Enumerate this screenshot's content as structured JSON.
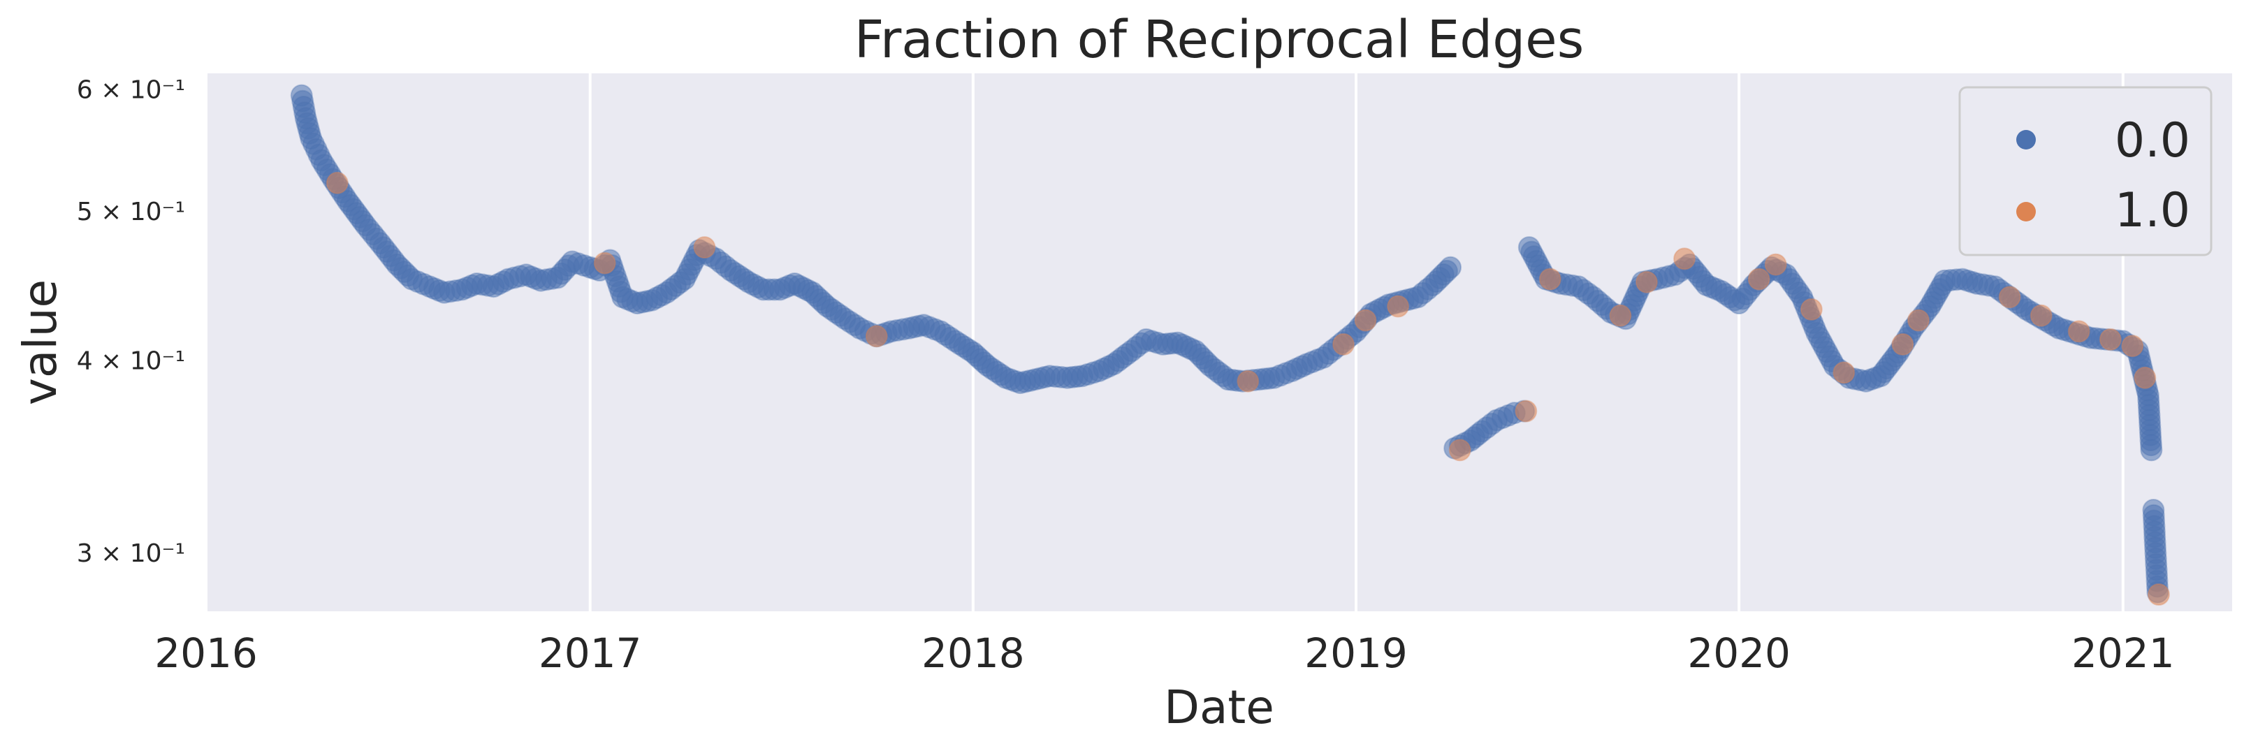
{
  "chart_data": {
    "type": "scatter",
    "title": "Fraction of Reciprocal Edges",
    "xlabel": "Date",
    "ylabel": "value",
    "xlim": [
      "2016-01-01",
      "2021-04-15"
    ],
    "ylim": [
      0.275,
      0.615
    ],
    "yscale": "log",
    "x_tick_labels": [
      "2016",
      "2017",
      "2018",
      "2019",
      "2020",
      "2021"
    ],
    "y_tick_labels": [
      {
        "value": 0.6,
        "label": "6 × 10⁻¹"
      },
      {
        "value": 0.5,
        "label": "5 × 10⁻¹"
      },
      {
        "value": 0.4,
        "label": "4 × 10⁻¹"
      },
      {
        "value": 0.3,
        "label": "3 × 10⁻¹"
      }
    ],
    "grid": true,
    "legend_position": "top-right",
    "colors": {
      "background": "#eaeaf2",
      "grid": "#ffffff",
      "series_0": "#4c72b0",
      "series_1": "#dd8452"
    },
    "series": [
      {
        "name": "0.0",
        "color": "#4c72b0",
        "points": [
          [
            "2016-04-01",
            0.595
          ],
          [
            "2016-04-05",
            0.575
          ],
          [
            "2016-04-10",
            0.558
          ],
          [
            "2016-04-20",
            0.54
          ],
          [
            "2016-05-01",
            0.525
          ],
          [
            "2016-05-15",
            0.508
          ],
          [
            "2016-06-01",
            0.49
          ],
          [
            "2016-06-15",
            0.477
          ],
          [
            "2016-07-01",
            0.462
          ],
          [
            "2016-07-15",
            0.452
          ],
          [
            "2016-08-01",
            0.447
          ],
          [
            "2016-08-15",
            0.443
          ],
          [
            "2016-09-01",
            0.445
          ],
          [
            "2016-09-15",
            0.449
          ],
          [
            "2016-10-01",
            0.447
          ],
          [
            "2016-10-15",
            0.452
          ],
          [
            "2016-11-01",
            0.455
          ],
          [
            "2016-11-15",
            0.451
          ],
          [
            "2016-12-01",
            0.453
          ],
          [
            "2016-12-15",
            0.464
          ],
          [
            "2017-01-01",
            0.46
          ],
          [
            "2017-01-10",
            0.458
          ],
          [
            "2017-01-20",
            0.465
          ],
          [
            "2017-02-01",
            0.44
          ],
          [
            "2017-02-15",
            0.436
          ],
          [
            "2017-03-01",
            0.438
          ],
          [
            "2017-03-15",
            0.443
          ],
          [
            "2017-04-01",
            0.452
          ],
          [
            "2017-04-15",
            0.472
          ],
          [
            "2017-05-01",
            0.466
          ],
          [
            "2017-05-15",
            0.458
          ],
          [
            "2017-06-01",
            0.45
          ],
          [
            "2017-06-15",
            0.445
          ],
          [
            "2017-07-01",
            0.445
          ],
          [
            "2017-07-15",
            0.449
          ],
          [
            "2017-08-01",
            0.443
          ],
          [
            "2017-08-15",
            0.434
          ],
          [
            "2017-09-01",
            0.426
          ],
          [
            "2017-09-15",
            0.42
          ],
          [
            "2017-10-01",
            0.415
          ],
          [
            "2017-10-15",
            0.418
          ],
          [
            "2017-11-01",
            0.42
          ],
          [
            "2017-11-15",
            0.422
          ],
          [
            "2017-12-01",
            0.418
          ],
          [
            "2017-12-15",
            0.412
          ],
          [
            "2018-01-01",
            0.405
          ],
          [
            "2018-01-15",
            0.397
          ],
          [
            "2018-02-01",
            0.39
          ],
          [
            "2018-02-15",
            0.387
          ],
          [
            "2018-03-01",
            0.389
          ],
          [
            "2018-03-15",
            0.391
          ],
          [
            "2018-04-01",
            0.39
          ],
          [
            "2018-04-15",
            0.391
          ],
          [
            "2018-05-01",
            0.394
          ],
          [
            "2018-05-15",
            0.398
          ],
          [
            "2018-06-01",
            0.406
          ],
          [
            "2018-06-15",
            0.413
          ],
          [
            "2018-07-01",
            0.41
          ],
          [
            "2018-07-15",
            0.411
          ],
          [
            "2018-08-01",
            0.406
          ],
          [
            "2018-08-15",
            0.397
          ],
          [
            "2018-09-01",
            0.389
          ],
          [
            "2018-09-15",
            0.388
          ],
          [
            "2018-10-01",
            0.389
          ],
          [
            "2018-10-15",
            0.39
          ],
          [
            "2018-11-01",
            0.394
          ],
          [
            "2018-11-15",
            0.398
          ],
          [
            "2018-12-01",
            0.402
          ],
          [
            "2018-12-15",
            0.409
          ],
          [
            "2019-01-01",
            0.418
          ],
          [
            "2019-01-15",
            0.429
          ],
          [
            "2019-02-01",
            0.435
          ],
          [
            "2019-03-01",
            0.44
          ],
          [
            "2019-03-15",
            0.448
          ],
          [
            "2019-04-01",
            0.46
          ],
          [
            "2019-04-05",
            0.351
          ],
          [
            "2019-04-20",
            0.355
          ],
          [
            "2019-05-01",
            0.36
          ],
          [
            "2019-05-15",
            0.366
          ],
          [
            "2019-06-01",
            0.37
          ],
          [
            "2019-06-10",
            0.371
          ],
          [
            "2019-06-15",
            0.474
          ],
          [
            "2019-07-01",
            0.452
          ],
          [
            "2019-07-15",
            0.449
          ],
          [
            "2019-08-01",
            0.447
          ],
          [
            "2019-08-15",
            0.44
          ],
          [
            "2019-09-01",
            0.43
          ],
          [
            "2019-09-15",
            0.426
          ],
          [
            "2019-10-01",
            0.45
          ],
          [
            "2019-10-15",
            0.452
          ],
          [
            "2019-11-01",
            0.455
          ],
          [
            "2019-11-15",
            0.462
          ],
          [
            "2019-12-01",
            0.448
          ],
          [
            "2019-12-15",
            0.444
          ],
          [
            "2020-01-01",
            0.436
          ],
          [
            "2020-01-15",
            0.448
          ],
          [
            "2020-02-01",
            0.46
          ],
          [
            "2020-02-15",
            0.455
          ],
          [
            "2020-03-01",
            0.44
          ],
          [
            "2020-03-15",
            0.417
          ],
          [
            "2020-04-01",
            0.397
          ],
          [
            "2020-04-15",
            0.39
          ],
          [
            "2020-05-01",
            0.388
          ],
          [
            "2020-05-15",
            0.391
          ],
          [
            "2020-06-01",
            0.405
          ],
          [
            "2020-06-15",
            0.42
          ],
          [
            "2020-07-01",
            0.434
          ],
          [
            "2020-07-15",
            0.451
          ],
          [
            "2020-08-01",
            0.452
          ],
          [
            "2020-08-15",
            0.449
          ],
          [
            "2020-09-01",
            0.447
          ],
          [
            "2020-10-01",
            0.432
          ],
          [
            "2020-11-01",
            0.42
          ],
          [
            "2020-12-01",
            0.414
          ],
          [
            "2021-01-01",
            0.412
          ],
          [
            "2021-01-15",
            0.406
          ],
          [
            "2021-01-25",
            0.38
          ],
          [
            "2021-01-28",
            0.35
          ],
          [
            "2021-01-30",
            0.32
          ],
          [
            "2021-02-01",
            0.3
          ],
          [
            "2021-02-03",
            0.283
          ]
        ]
      },
      {
        "name": "1.0",
        "color": "#dd8452",
        "points": [
          [
            "2016-05-05",
            0.522
          ],
          [
            "2017-01-15",
            0.463
          ],
          [
            "2017-04-20",
            0.474
          ],
          [
            "2017-10-01",
            0.415
          ],
          [
            "2018-09-20",
            0.388
          ],
          [
            "2018-12-20",
            0.41
          ],
          [
            "2019-01-10",
            0.425
          ],
          [
            "2019-02-10",
            0.434
          ],
          [
            "2019-04-10",
            0.35
          ],
          [
            "2019-06-12",
            0.371
          ],
          [
            "2019-07-05",
            0.452
          ],
          [
            "2019-09-10",
            0.428
          ],
          [
            "2019-10-05",
            0.45
          ],
          [
            "2019-11-10",
            0.466
          ],
          [
            "2020-01-20",
            0.452
          ],
          [
            "2020-02-05",
            0.462
          ],
          [
            "2020-03-10",
            0.432
          ],
          [
            "2020-04-10",
            0.393
          ],
          [
            "2020-06-05",
            0.41
          ],
          [
            "2020-06-20",
            0.425
          ],
          [
            "2020-09-15",
            0.44
          ],
          [
            "2020-10-15",
            0.428
          ],
          [
            "2020-11-20",
            0.418
          ],
          [
            "2020-12-20",
            0.413
          ],
          [
            "2021-01-10",
            0.409
          ],
          [
            "2021-01-22",
            0.39
          ],
          [
            "2021-02-04",
            0.282
          ]
        ]
      }
    ]
  }
}
